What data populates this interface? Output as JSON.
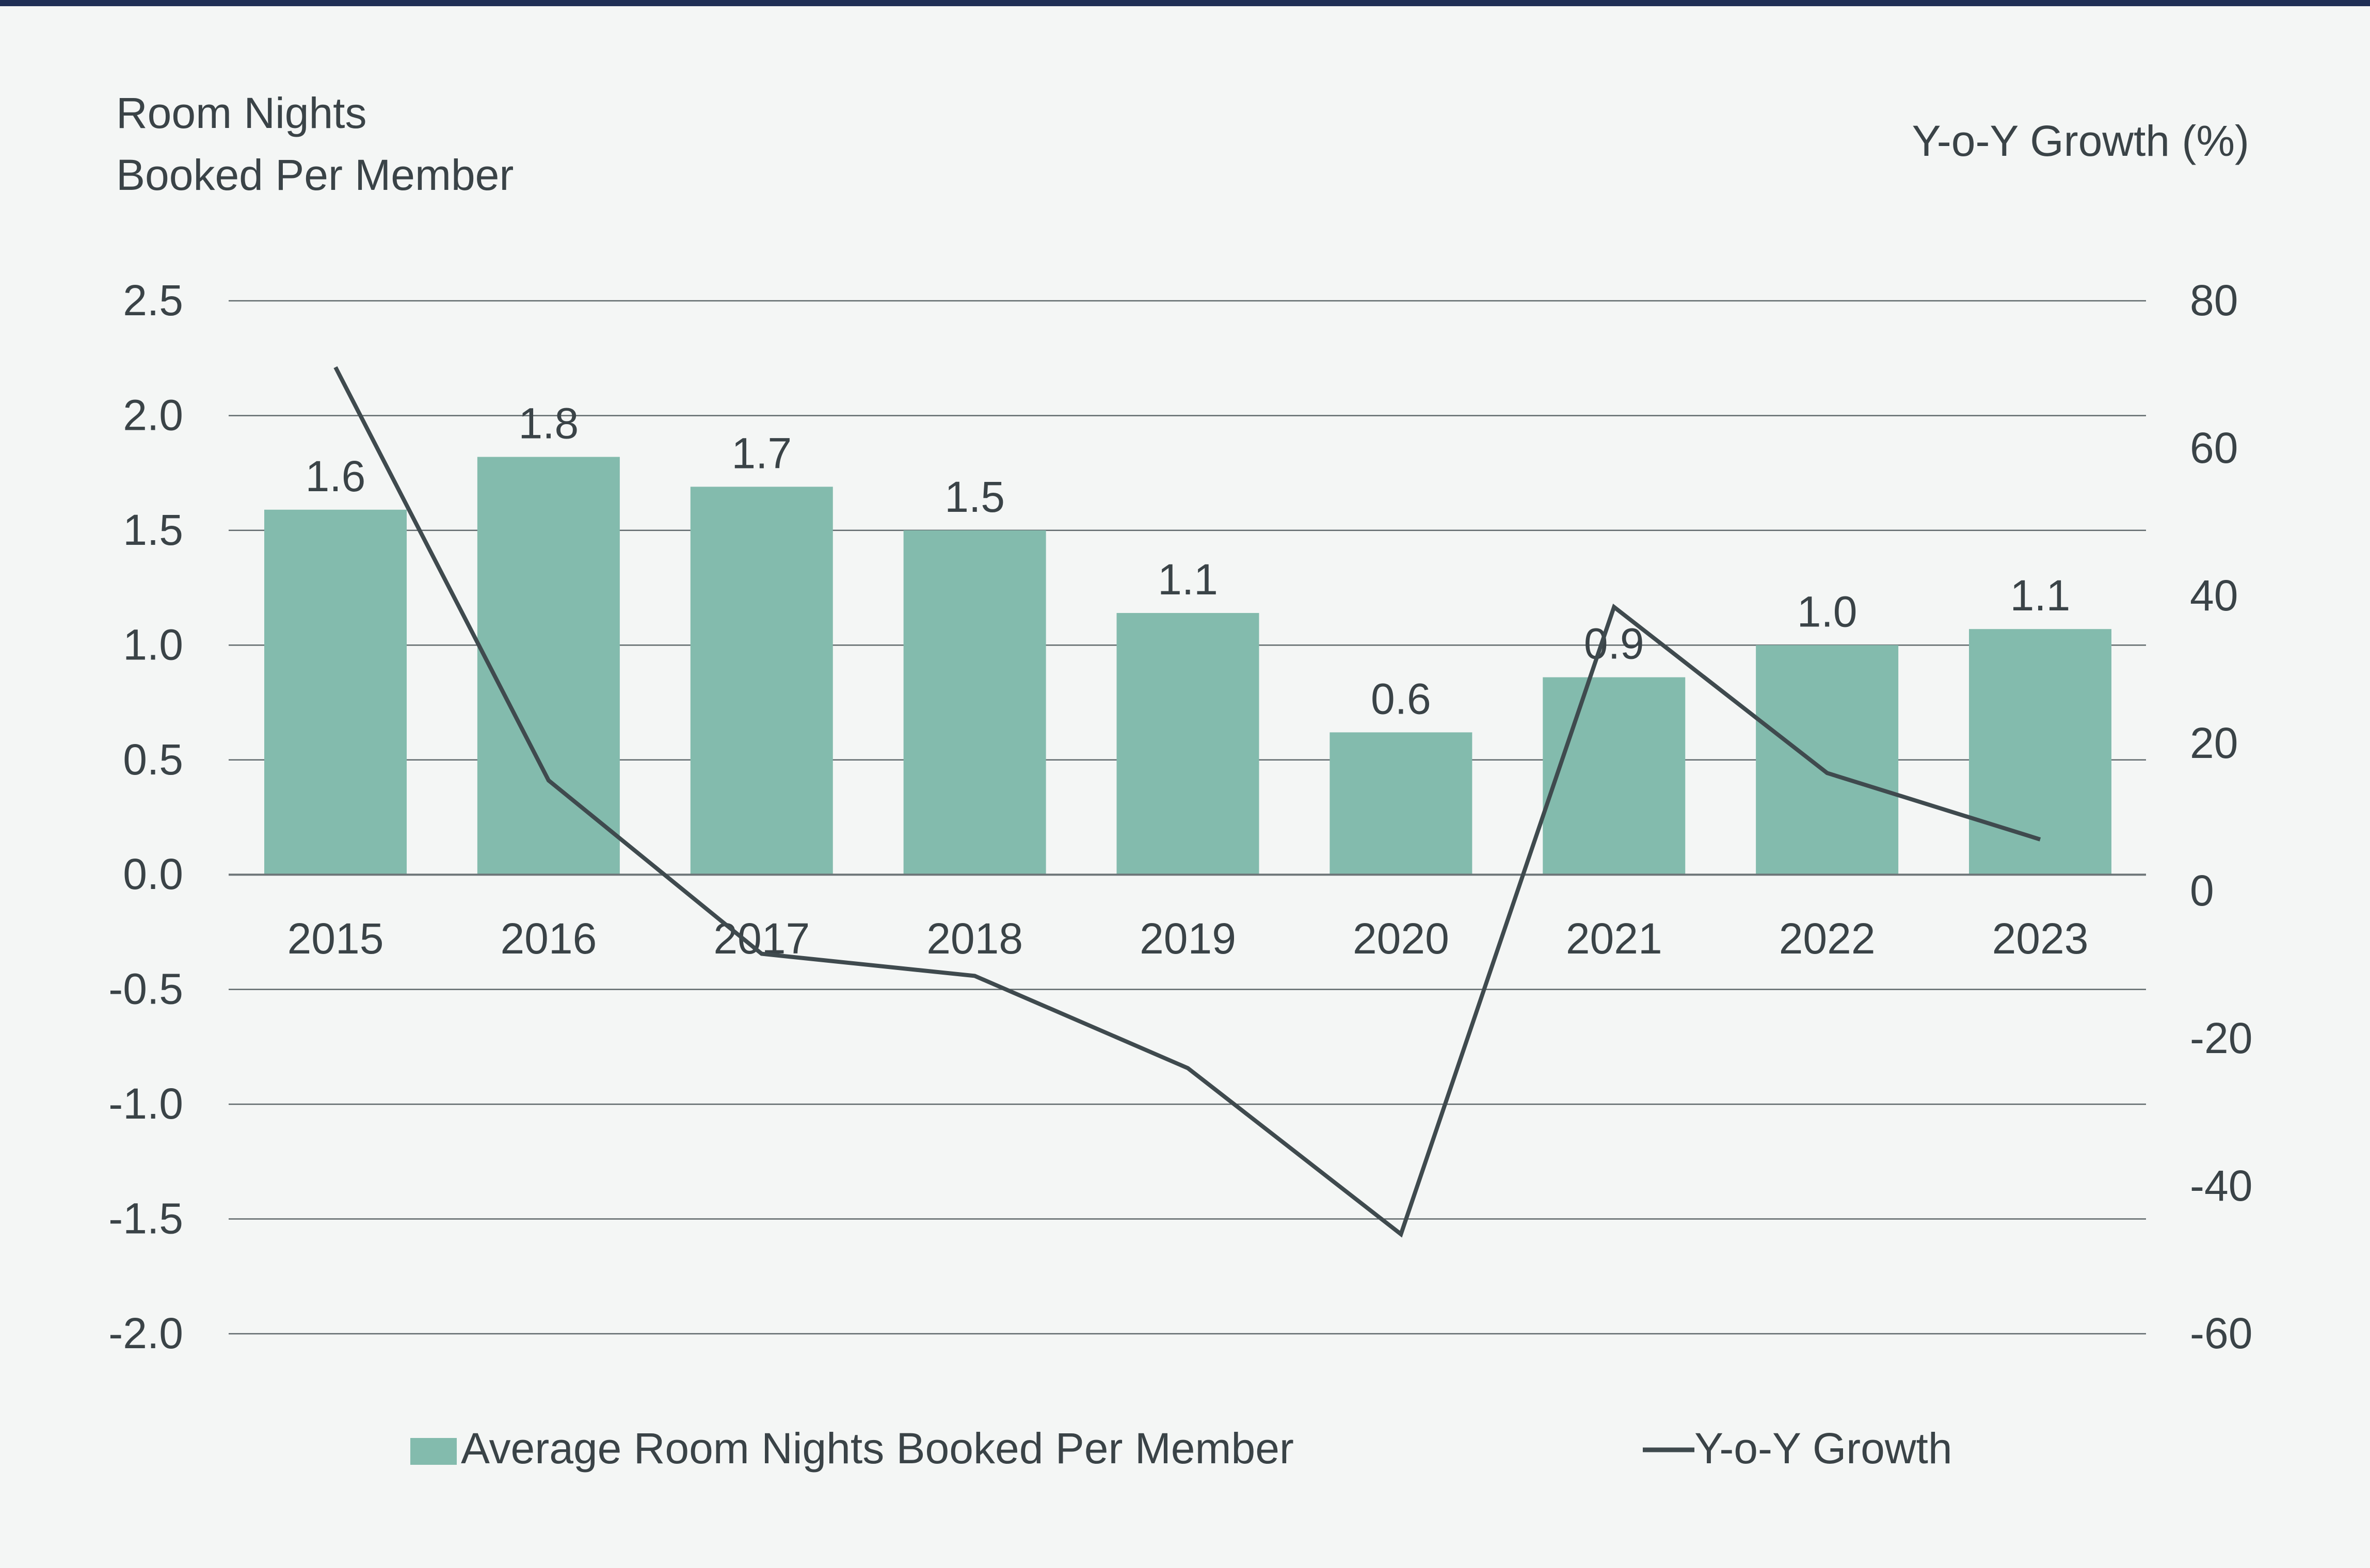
{
  "chart_data": {
    "type": "bar",
    "title": "",
    "left_axis_title": [
      "Room Nights",
      "Booked Per Member"
    ],
    "right_axis_title": "Y-o-Y Growth (%)",
    "categories": [
      "2015",
      "2016",
      "2017",
      "2018",
      "2019",
      "2020",
      "2021",
      "2022",
      "2023"
    ],
    "series": [
      {
        "name": "Average Room Nights Booked Per Member",
        "type": "bar",
        "axis": "left",
        "values": [
          1.59,
          1.82,
          1.69,
          1.5,
          1.14,
          0.62,
          0.86,
          1.0,
          1.07
        ],
        "labels": [
          "1.6",
          "1.8",
          "1.7",
          "1.5",
          "1.1",
          "0.6",
          "0.9",
          "1.0",
          "1.1"
        ],
        "color": "#83bbad"
      },
      {
        "name": "Y-o-Y Growth",
        "type": "line",
        "axis": "right",
        "values": [
          71,
          15,
          -8.5,
          -11.5,
          -24,
          -46.5,
          38.5,
          16,
          7
        ],
        "color": "#3f4a4e"
      }
    ],
    "left_axis": {
      "ylim": [
        -2.0,
        2.5
      ],
      "ticks": [
        2.5,
        2.0,
        1.5,
        1.0,
        0.5,
        0.0,
        -0.5,
        -1.0,
        -1.5,
        -2.0
      ],
      "tick_labels": [
        "2.5",
        "2.0",
        "1.5",
        "1.0",
        "0.5",
        "0.0",
        "-0.5",
        "-1.0",
        "-1.5",
        "-2.0"
      ]
    },
    "right_axis": {
      "ylim": [
        -60,
        80
      ],
      "ticks": [
        80,
        60,
        40,
        20,
        0,
        -20,
        -40,
        -60
      ],
      "tick_labels": [
        "80",
        "60",
        "40",
        "20",
        "0",
        "-20",
        "-40",
        "-60"
      ]
    },
    "grid": true,
    "legend_position": "bottom-center",
    "colors": {
      "background": "#f4f6f5",
      "top_rule": "#1f2f55",
      "grid": "#5f686b",
      "baseline": "#6d7578",
      "text": "#3a4347"
    }
  }
}
